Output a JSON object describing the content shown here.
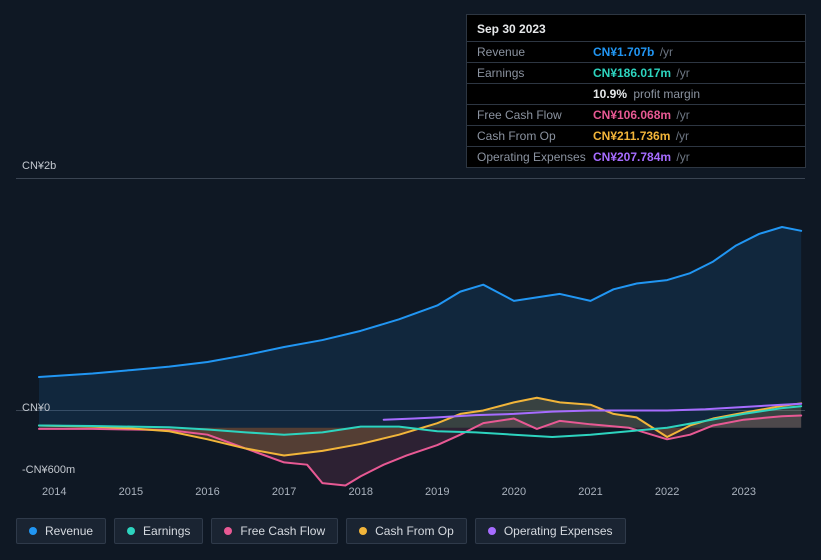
{
  "tooltip": {
    "date": "Sep 30 2023",
    "rows": [
      {
        "label": "Revenue",
        "value": "CN¥1.707b",
        "color": "#2196f3",
        "suffix": "/yr"
      },
      {
        "label": "Earnings",
        "value": "CN¥186.017m",
        "color": "#2dd4bf",
        "suffix": "/yr",
        "extra_value": "10.9%",
        "extra_label": "profit margin"
      },
      {
        "label": "Free Cash Flow",
        "value": "CN¥106.068m",
        "color": "#e85994",
        "suffix": "/yr"
      },
      {
        "label": "Cash From Op",
        "value": "CN¥211.736m",
        "color": "#f2b53a",
        "suffix": "/yr"
      },
      {
        "label": "Operating Expenses",
        "value": "CN¥207.784m",
        "color": "#a66cff",
        "suffix": "/yr"
      }
    ]
  },
  "chart": {
    "type": "line",
    "background_color": "#0f1824",
    "grid_color": "#3a4452",
    "label_color": "#aab2bd",
    "label_fontsize": 11,
    "y_axis": {
      "labels": [
        "CN¥2b",
        "CN¥0",
        "-CN¥600m"
      ],
      "min_m": -600,
      "max_m": 2000,
      "zero_line_m": 0
    },
    "x_axis": {
      "years": [
        2014,
        2015,
        2016,
        2017,
        2018,
        2019,
        2020,
        2021,
        2022,
        2023
      ],
      "min": 2013.5,
      "max": 2023.8
    },
    "series": [
      {
        "name": "Revenue",
        "color": "#2196f3",
        "fill_opacity": 0.12,
        "line_width": 2,
        "points_m": [
          [
            2013.8,
            440
          ],
          [
            2014.5,
            470
          ],
          [
            2015.0,
            500
          ],
          [
            2015.5,
            530
          ],
          [
            2016.0,
            570
          ],
          [
            2016.5,
            630
          ],
          [
            2017.0,
            700
          ],
          [
            2017.5,
            760
          ],
          [
            2018.0,
            840
          ],
          [
            2018.5,
            940
          ],
          [
            2019.0,
            1060
          ],
          [
            2019.3,
            1180
          ],
          [
            2019.6,
            1240
          ],
          [
            2019.8,
            1170
          ],
          [
            2020.0,
            1100
          ],
          [
            2020.3,
            1130
          ],
          [
            2020.6,
            1160
          ],
          [
            2021.0,
            1100
          ],
          [
            2021.3,
            1200
          ],
          [
            2021.6,
            1250
          ],
          [
            2022.0,
            1280
          ],
          [
            2022.3,
            1340
          ],
          [
            2022.6,
            1440
          ],
          [
            2022.9,
            1580
          ],
          [
            2023.2,
            1680
          ],
          [
            2023.5,
            1740
          ],
          [
            2023.75,
            1707
          ]
        ]
      },
      {
        "name": "Earnings",
        "color": "#2dd4bf",
        "fill_opacity": 0,
        "line_width": 2,
        "points_m": [
          [
            2013.8,
            20
          ],
          [
            2014.5,
            15
          ],
          [
            2015.0,
            10
          ],
          [
            2015.5,
            5
          ],
          [
            2016.0,
            -15
          ],
          [
            2016.5,
            -40
          ],
          [
            2017.0,
            -60
          ],
          [
            2017.5,
            -40
          ],
          [
            2018.0,
            10
          ],
          [
            2018.5,
            10
          ],
          [
            2019.0,
            -30
          ],
          [
            2019.5,
            -40
          ],
          [
            2020.0,
            -60
          ],
          [
            2020.5,
            -80
          ],
          [
            2021.0,
            -60
          ],
          [
            2021.5,
            -30
          ],
          [
            2022.0,
            0
          ],
          [
            2022.5,
            60
          ],
          [
            2023.0,
            120
          ],
          [
            2023.5,
            170
          ],
          [
            2023.75,
            186
          ]
        ]
      },
      {
        "name": "Free Cash Flow",
        "color": "#e85994",
        "fill_opacity": 0.14,
        "line_width": 2,
        "points_m": [
          [
            2013.8,
            -10
          ],
          [
            2014.5,
            -10
          ],
          [
            2015.0,
            -15
          ],
          [
            2015.5,
            -20
          ],
          [
            2016.0,
            -60
          ],
          [
            2016.5,
            -180
          ],
          [
            2017.0,
            -300
          ],
          [
            2017.3,
            -320
          ],
          [
            2017.5,
            -480
          ],
          [
            2017.8,
            -500
          ],
          [
            2018.0,
            -420
          ],
          [
            2018.3,
            -320
          ],
          [
            2018.6,
            -240
          ],
          [
            2019.0,
            -150
          ],
          [
            2019.3,
            -60
          ],
          [
            2019.6,
            40
          ],
          [
            2020.0,
            80
          ],
          [
            2020.3,
            -10
          ],
          [
            2020.6,
            60
          ],
          [
            2021.0,
            30
          ],
          [
            2021.5,
            0
          ],
          [
            2022.0,
            -100
          ],
          [
            2022.3,
            -60
          ],
          [
            2022.6,
            20
          ],
          [
            2023.0,
            70
          ],
          [
            2023.5,
            100
          ],
          [
            2023.75,
            106
          ]
        ]
      },
      {
        "name": "Cash From Op",
        "color": "#f2b53a",
        "fill_opacity": 0.2,
        "line_width": 2,
        "points_m": [
          [
            2013.8,
            20
          ],
          [
            2014.5,
            10
          ],
          [
            2015.0,
            -5
          ],
          [
            2015.5,
            -30
          ],
          [
            2016.0,
            -100
          ],
          [
            2016.5,
            -180
          ],
          [
            2017.0,
            -240
          ],
          [
            2017.5,
            -200
          ],
          [
            2018.0,
            -140
          ],
          [
            2018.5,
            -60
          ],
          [
            2019.0,
            40
          ],
          [
            2019.3,
            120
          ],
          [
            2019.6,
            150
          ],
          [
            2020.0,
            220
          ],
          [
            2020.3,
            260
          ],
          [
            2020.6,
            220
          ],
          [
            2021.0,
            200
          ],
          [
            2021.3,
            120
          ],
          [
            2021.6,
            90
          ],
          [
            2022.0,
            -80
          ],
          [
            2022.3,
            20
          ],
          [
            2022.6,
            80
          ],
          [
            2023.0,
            130
          ],
          [
            2023.5,
            190
          ],
          [
            2023.75,
            212
          ]
        ]
      },
      {
        "name": "Operating Expenses",
        "color": "#a66cff",
        "fill_opacity": 0,
        "line_width": 2,
        "points_m": [
          [
            2018.3,
            70
          ],
          [
            2018.7,
            80
          ],
          [
            2019.0,
            90
          ],
          [
            2019.5,
            110
          ],
          [
            2020.0,
            120
          ],
          [
            2020.5,
            140
          ],
          [
            2021.0,
            150
          ],
          [
            2021.5,
            150
          ],
          [
            2022.0,
            150
          ],
          [
            2022.5,
            160
          ],
          [
            2023.0,
            180
          ],
          [
            2023.5,
            200
          ],
          [
            2023.75,
            208
          ]
        ]
      }
    ],
    "legend": [
      {
        "label": "Revenue",
        "color": "#2196f3"
      },
      {
        "label": "Earnings",
        "color": "#2dd4bf"
      },
      {
        "label": "Free Cash Flow",
        "color": "#e85994"
      },
      {
        "label": "Cash From Op",
        "color": "#f2b53a"
      },
      {
        "label": "Operating Expenses",
        "color": "#a66cff"
      }
    ]
  }
}
